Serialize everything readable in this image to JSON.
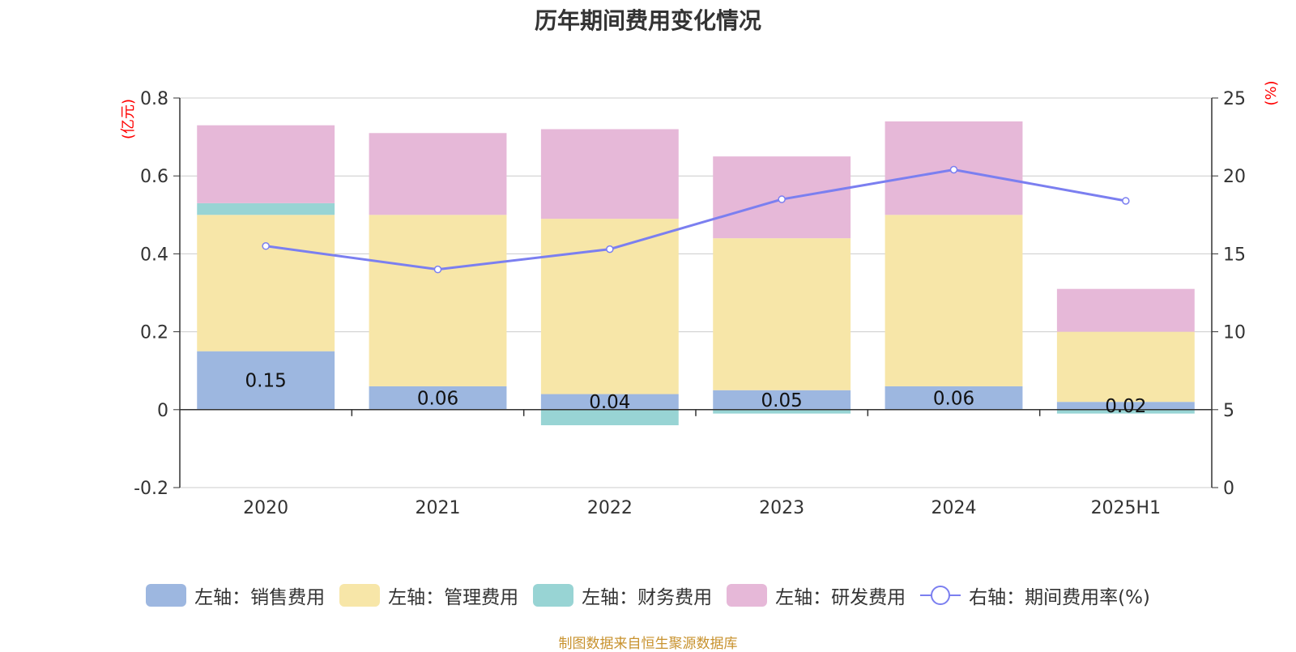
{
  "chart_data": {
    "type": "bar",
    "title": "历年期间费用变化情况",
    "categories": [
      "2020",
      "2021",
      "2022",
      "2023",
      "2024",
      "2025H1"
    ],
    "left_axis": {
      "unit": "(亿元)",
      "ylim": [
        -0.2,
        0.8
      ],
      "ticks": [
        "-0.2",
        "0",
        "0.2",
        "0.4",
        "0.6",
        "0.8"
      ]
    },
    "right_axis": {
      "unit": "(%)",
      "ylim": [
        0,
        25
      ],
      "ticks": [
        "0",
        "5",
        "10",
        "15",
        "20",
        "25"
      ]
    },
    "stacked": true,
    "series": [
      {
        "name": "左轴：销售费用",
        "axis": "left",
        "color": "#9db7e0",
        "values": [
          0.15,
          0.06,
          0.04,
          0.05,
          0.06,
          0.02
        ],
        "labels": [
          "0.15",
          "0.06",
          "0.04",
          "0.05",
          "0.06",
          "0.02"
        ]
      },
      {
        "name": "左轴：管理费用",
        "axis": "left",
        "color": "#f7e6a8",
        "values": [
          0.35,
          0.44,
          0.45,
          0.39,
          0.44,
          0.18
        ]
      },
      {
        "name": "左轴：财务费用",
        "axis": "left",
        "color": "#98d4d4",
        "values": [
          0.03,
          0.0,
          -0.04,
          -0.01,
          0.0,
          -0.01
        ]
      },
      {
        "name": "左轴：研发费用",
        "axis": "left",
        "color": "#e6b8d8",
        "values": [
          0.2,
          0.21,
          0.23,
          0.21,
          0.24,
          0.11
        ]
      },
      {
        "name": "右轴：期间费用率(%)",
        "axis": "right",
        "type": "line",
        "color": "#7b7ff0",
        "values": [
          15.5,
          14.0,
          15.3,
          18.5,
          20.4,
          18.4
        ]
      }
    ],
    "grid": true,
    "legend_position": "bottom"
  },
  "source": "制图数据来自恒生聚源数据库"
}
